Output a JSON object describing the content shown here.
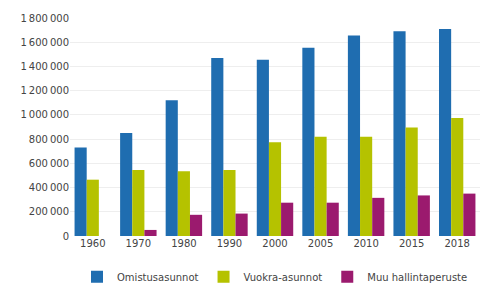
{
  "chart_data": {
    "type": "bar",
    "categories": [
      "1960",
      "1970",
      "1980",
      "1990",
      "2000",
      "2005",
      "2010",
      "2015",
      "2018"
    ],
    "series": [
      {
        "name": "Omistusasunnot",
        "color": "#1f6db0",
        "values": [
          730000,
          850000,
          1120000,
          1470000,
          1455000,
          1555000,
          1655000,
          1690000,
          1710000
        ]
      },
      {
        "name": "Vuokra-asunnot",
        "color": "#b5c200",
        "values": [
          465000,
          545000,
          535000,
          545000,
          775000,
          820000,
          820000,
          895000,
          975000
        ]
      },
      {
        "name": "Muu hallintaperuste",
        "color": "#9b1a6e",
        "values": [
          0,
          50000,
          175000,
          185000,
          275000,
          275000,
          315000,
          335000,
          350000
        ]
      }
    ],
    "ylim": [
      0,
      1800000
    ],
    "yticks": [
      0,
      {
        "value": 200000,
        "label": "200 000"
      },
      {
        "value": 400000,
        "label": "400 000"
      },
      {
        "value": 600000,
        "label": "600 000"
      },
      {
        "value": 800000,
        "label": "800 000"
      },
      {
        "value": 1000000,
        "label": "1 000 000"
      },
      {
        "value": 1200000,
        "label": "1 200 000"
      },
      {
        "value": 1400000,
        "label": "1 400 000"
      },
      {
        "value": 1600000,
        "label": "1 600 000"
      },
      {
        "value": 1800000,
        "label": "1 800 000"
      }
    ],
    "grid": true,
    "legend": "bottom"
  }
}
